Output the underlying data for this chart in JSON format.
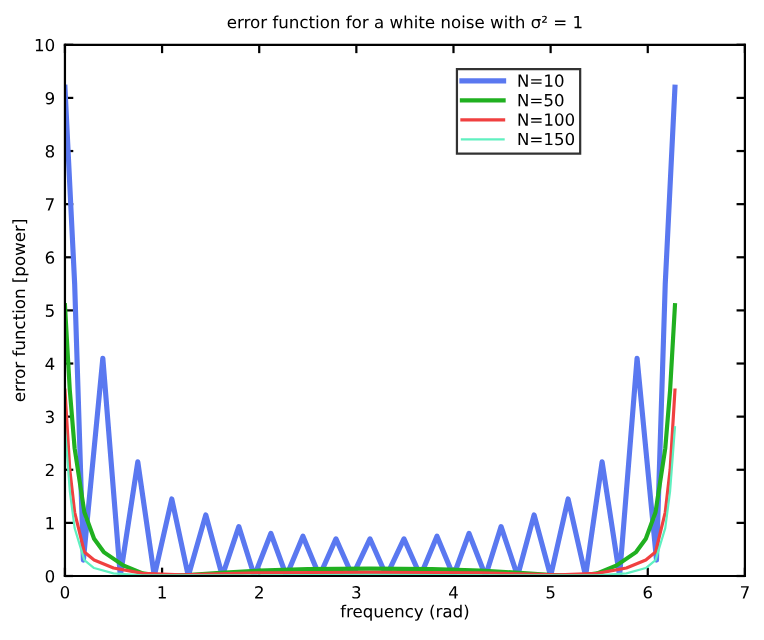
{
  "chart_data": {
    "type": "line",
    "title": "error function for a white noise with σ² = 1",
    "xlabel": "frequency (rad)",
    "ylabel": "error function [power]",
    "xlim": [
      0,
      7
    ],
    "ylim": [
      0,
      10
    ],
    "xticks": [
      0,
      1,
      2,
      3,
      4,
      5,
      6,
      7
    ],
    "yticks": [
      0,
      1,
      2,
      3,
      4,
      5,
      6,
      7,
      8,
      9,
      10
    ],
    "grid": false,
    "legend": "top right",
    "series": [
      {
        "name": "N=10",
        "color": "#5a78f0",
        "x": [
          0,
          0.1,
          0.19,
          0.39,
          0.57,
          0.75,
          0.92,
          1.1,
          1.27,
          1.45,
          1.62,
          1.79,
          1.95,
          2.12,
          2.28,
          2.45,
          2.62,
          2.79,
          2.96,
          3.14,
          3.31,
          3.49,
          3.66,
          3.83,
          4.0,
          4.16,
          4.33,
          4.49,
          4.66,
          4.83,
          5.0,
          5.18,
          5.36,
          5.53,
          5.71,
          5.89,
          6.09,
          6.18,
          6.28
        ],
        "values": [
          9.2,
          5.5,
          0.3,
          4.1,
          0,
          2.15,
          0,
          1.45,
          0,
          1.15,
          0,
          0.93,
          0,
          0.8,
          0,
          0.75,
          0,
          0.7,
          0,
          0.7,
          0,
          0.7,
          0,
          0.75,
          0,
          0.8,
          0,
          0.93,
          0,
          1.15,
          0,
          1.45,
          0,
          2.15,
          0,
          4.1,
          0.3,
          5.5,
          9.2
        ]
      },
      {
        "name": "N=50",
        "color": "#20b020",
        "x": [
          0,
          0.05,
          0.1,
          0.2,
          0.3,
          0.4,
          0.6,
          0.8,
          1.0,
          1.3,
          1.6,
          2.0,
          2.5,
          3.14,
          3.78,
          4.28,
          4.68,
          4.98,
          5.28,
          5.48,
          5.68,
          5.88,
          5.98,
          6.08,
          6.18,
          6.23,
          6.28
        ],
        "values": [
          5.1,
          3.5,
          2.4,
          1.2,
          0.7,
          0.45,
          0.2,
          0.05,
          0,
          0.02,
          0.06,
          0.1,
          0.13,
          0.14,
          0.13,
          0.1,
          0.06,
          0.02,
          0,
          0.05,
          0.2,
          0.45,
          0.7,
          1.2,
          2.4,
          3.5,
          5.1
        ]
      },
      {
        "name": "N=100",
        "color": "#f04040",
        "x": [
          0,
          0.05,
          0.1,
          0.2,
          0.3,
          0.5,
          0.8,
          1.2,
          2.0,
          3.14,
          4.28,
          5.08,
          5.48,
          5.78,
          5.98,
          6.08,
          6.18,
          6.23,
          6.28
        ],
        "values": [
          3.5,
          2.0,
          1.2,
          0.45,
          0.3,
          0.15,
          0.05,
          0.02,
          0.06,
          0.07,
          0.06,
          0.02,
          0.05,
          0.15,
          0.3,
          0.45,
          1.2,
          2.0,
          3.5
        ]
      },
      {
        "name": "N=150",
        "color": "#60f0c0",
        "x": [
          0,
          0.05,
          0.1,
          0.2,
          0.3,
          0.5,
          0.8,
          1.5,
          3.14,
          4.78,
          5.48,
          5.78,
          5.98,
          6.08,
          6.18,
          6.23,
          6.28
        ],
        "values": [
          2.8,
          1.6,
          0.9,
          0.3,
          0.15,
          0.05,
          0.01,
          0.01,
          0.02,
          0.01,
          0.01,
          0.05,
          0.15,
          0.3,
          0.9,
          1.6,
          2.8
        ]
      }
    ]
  }
}
